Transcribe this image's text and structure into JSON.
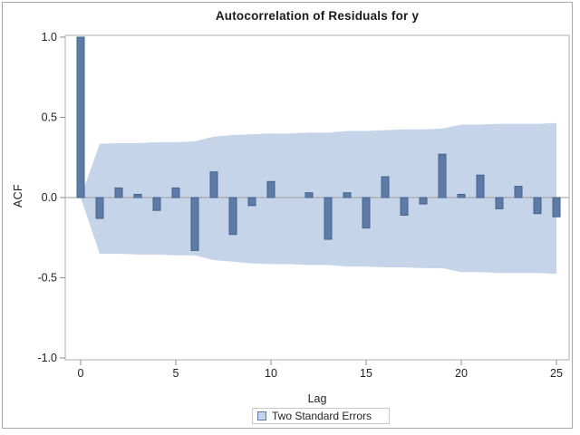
{
  "colors": {
    "bar_fill": "#5D7BA7",
    "bar_stroke": "#46628D",
    "band_fill": "#C5D4E8",
    "frame": "#ACACAC",
    "tick": "#8C8C8C",
    "zero_line": "#9B9B9B",
    "text": "#222222",
    "outer_border": "#A8A8A8",
    "legend_border": "#C9C9C9",
    "background": "#FFFFFF"
  },
  "chart_data": {
    "type": "bar",
    "title": "Autocorrelation of Residuals for y",
    "xlabel": "Lag",
    "ylabel": "ACF",
    "ylim": [
      -1.0,
      1.0
    ],
    "xlim": [
      0,
      25
    ],
    "grid": false,
    "legend_position": "bottom-center",
    "legend": [
      {
        "label": "Two Standard Errors",
        "swatch": "band"
      }
    ],
    "ytick_values": [
      1.0,
      0.5,
      0.0,
      -0.5,
      -1.0
    ],
    "ytick_labels": [
      "1.0",
      "0.5",
      "0.0",
      "-0.5",
      "-1.0"
    ],
    "xtick_values": [
      0,
      5,
      10,
      15,
      20,
      25
    ],
    "xtick_labels": [
      "0",
      "5",
      "10",
      "15",
      "20",
      "25"
    ],
    "x": [
      0,
      1,
      2,
      3,
      4,
      5,
      6,
      7,
      8,
      9,
      10,
      11,
      12,
      13,
      14,
      15,
      16,
      17,
      18,
      19,
      20,
      21,
      22,
      23,
      24,
      25
    ],
    "acf": [
      1.0,
      -0.13,
      0.06,
      0.02,
      -0.08,
      0.06,
      -0.33,
      0.16,
      -0.23,
      -0.05,
      0.1,
      0.0,
      0.03,
      -0.26,
      0.03,
      -0.19,
      0.13,
      -0.11,
      -0.04,
      0.27,
      0.02,
      0.14,
      -0.07,
      0.07,
      -0.1,
      -0.12
    ],
    "band_upper": [
      0,
      0.335,
      0.34,
      0.34,
      0.345,
      0.345,
      0.35,
      0.38,
      0.39,
      0.395,
      0.4,
      0.4,
      0.405,
      0.405,
      0.415,
      0.415,
      0.42,
      0.425,
      0.425,
      0.43,
      0.455,
      0.455,
      0.46,
      0.46,
      0.46,
      0.465
    ],
    "band_lower": [
      0,
      -0.35,
      -0.35,
      -0.355,
      -0.355,
      -0.36,
      -0.36,
      -0.39,
      -0.4,
      -0.41,
      -0.415,
      -0.415,
      -0.42,
      -0.42,
      -0.43,
      -0.43,
      -0.435,
      -0.435,
      -0.44,
      -0.44,
      -0.465,
      -0.465,
      -0.47,
      -0.47,
      -0.47,
      -0.475
    ]
  }
}
